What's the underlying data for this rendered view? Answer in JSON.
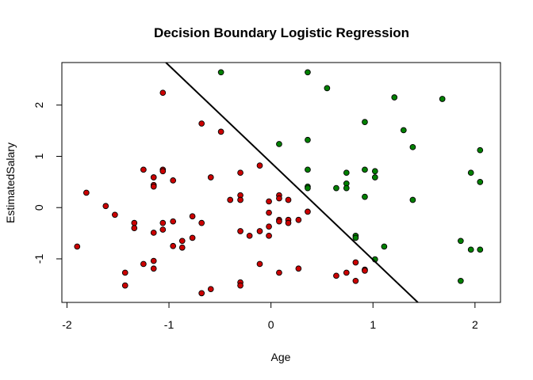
{
  "chart_data": {
    "type": "scatter",
    "title": "Decision Boundary Logistic Regression",
    "xlabel": "Age",
    "ylabel": "EstimatedSalary",
    "xlim": [
      -2.05,
      2.25
    ],
    "ylim": [
      -1.85,
      2.83
    ],
    "x_ticks": [
      -2,
      -1,
      0,
      1,
      2
    ],
    "x_tick_labels": [
      "-2",
      "-1",
      "0",
      "1",
      "2"
    ],
    "y_ticks": [
      -1,
      0,
      1,
      2
    ],
    "y_tick_labels": [
      "-1",
      "0",
      "1",
      "2"
    ],
    "grid": false,
    "legend": "none",
    "decision_boundary": {
      "points": [
        [
          -1.03,
          2.83
        ],
        [
          1.44,
          -1.85
        ]
      ],
      "color": "#000000"
    },
    "colors": {
      "class_0": "#cc0000",
      "class_1": "#008000",
      "outline": "#000000"
    },
    "series": [
      {
        "class": 0,
        "points": [
          [
            -1.9,
            -0.76
          ],
          [
            -1.81,
            0.29
          ],
          [
            -1.62,
            0.03
          ],
          [
            -1.53,
            -0.14
          ],
          [
            -1.43,
            -1.27
          ],
          [
            -1.43,
            -1.52
          ],
          [
            -1.34,
            -0.3
          ],
          [
            -1.34,
            -0.4
          ],
          [
            -1.25,
            0.74
          ],
          [
            -1.25,
            -1.1
          ],
          [
            -1.15,
            0.59
          ],
          [
            -1.15,
            0.44
          ],
          [
            -1.15,
            0.41
          ],
          [
            -1.15,
            -0.49
          ],
          [
            -1.15,
            -1.04
          ],
          [
            -1.15,
            -1.19
          ],
          [
            -1.06,
            2.24
          ],
          [
            -1.06,
            0.74
          ],
          [
            -1.06,
            0.71
          ],
          [
            -1.06,
            -0.3
          ],
          [
            -1.06,
            -0.43
          ],
          [
            -0.96,
            0.53
          ],
          [
            -0.96,
            -0.27
          ],
          [
            -0.96,
            -0.75
          ],
          [
            -0.87,
            -0.65
          ],
          [
            -0.87,
            -0.78
          ],
          [
            -0.77,
            -0.17
          ],
          [
            -0.77,
            -0.59
          ],
          [
            -0.68,
            1.64
          ],
          [
            -0.68,
            -0.3
          ],
          [
            -0.68,
            -1.67
          ],
          [
            -0.59,
            0.59
          ],
          [
            -0.59,
            -1.59
          ],
          [
            -0.49,
            1.48
          ],
          [
            -0.4,
            0.15
          ],
          [
            -0.3,
            0.68
          ],
          [
            -0.3,
            0.24
          ],
          [
            -0.3,
            0.15
          ],
          [
            -0.3,
            -0.46
          ],
          [
            -0.3,
            -1.46
          ],
          [
            -0.3,
            -1.52
          ],
          [
            -0.21,
            -0.55
          ],
          [
            -0.11,
            0.82
          ],
          [
            -0.11,
            -0.46
          ],
          [
            -0.11,
            -1.1
          ],
          [
            -0.02,
            0.12
          ],
          [
            -0.02,
            -0.1
          ],
          [
            -0.02,
            -0.37
          ],
          [
            -0.02,
            -0.55
          ],
          [
            0.08,
            0.24
          ],
          [
            0.08,
            0.18
          ],
          [
            0.08,
            -0.24
          ],
          [
            0.08,
            -0.27
          ],
          [
            0.08,
            -1.27
          ],
          [
            0.17,
            0.15
          ],
          [
            0.17,
            -0.24
          ],
          [
            0.17,
            -0.3
          ],
          [
            0.27,
            -0.24
          ],
          [
            0.27,
            -1.19
          ],
          [
            0.36,
            -0.08
          ],
          [
            0.64,
            -1.33
          ],
          [
            0.74,
            -1.27
          ],
          [
            0.83,
            -1.07
          ],
          [
            0.83,
            -1.43
          ],
          [
            0.92,
            -1.21
          ],
          [
            0.92,
            -1.23
          ]
        ]
      },
      {
        "class": 1,
        "points": [
          [
            -0.49,
            2.64
          ],
          [
            0.08,
            1.24
          ],
          [
            0.36,
            2.64
          ],
          [
            0.36,
            1.32
          ],
          [
            0.36,
            0.74
          ],
          [
            0.36,
            0.41
          ],
          [
            0.36,
            0.38
          ],
          [
            0.55,
            2.33
          ],
          [
            0.64,
            0.38
          ],
          [
            0.74,
            0.68
          ],
          [
            0.74,
            0.47
          ],
          [
            0.74,
            0.38
          ],
          [
            0.83,
            -0.55
          ],
          [
            0.83,
            -0.59
          ],
          [
            0.92,
            1.67
          ],
          [
            0.92,
            0.74
          ],
          [
            0.92,
            0.21
          ],
          [
            1.02,
            0.71
          ],
          [
            1.02,
            0.59
          ],
          [
            1.02,
            -1.01
          ],
          [
            1.11,
            -0.76
          ],
          [
            1.21,
            2.15
          ],
          [
            1.3,
            1.51
          ],
          [
            1.39,
            1.18
          ],
          [
            1.39,
            0.15
          ],
          [
            1.68,
            2.12
          ],
          [
            1.86,
            -0.65
          ],
          [
            1.86,
            -1.43
          ],
          [
            1.96,
            0.68
          ],
          [
            1.96,
            -0.82
          ],
          [
            2.05,
            1.12
          ],
          [
            2.05,
            0.5
          ],
          [
            2.05,
            -0.82
          ]
        ]
      }
    ]
  }
}
